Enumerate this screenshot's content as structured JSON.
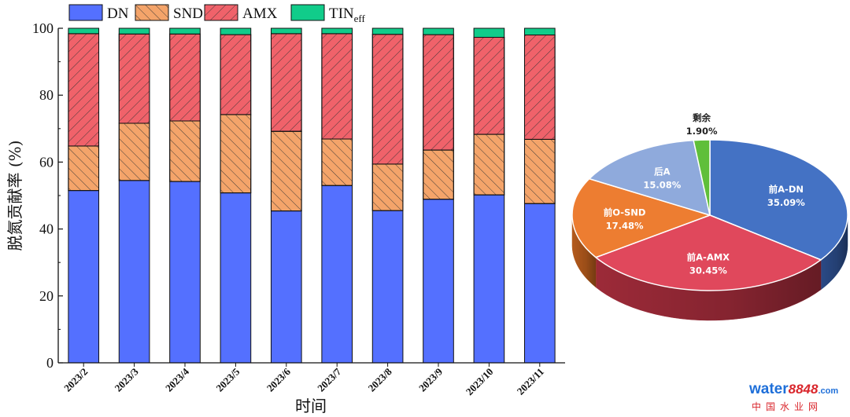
{
  "chart_data": [
    {
      "type": "bar",
      "stacked": true,
      "categories": [
        "2023/2",
        "2023/3",
        "2023/4",
        "2023/5",
        "2023/6",
        "2023/7",
        "2023/8",
        "2023/9",
        "2023/10",
        "2023/11"
      ],
      "series": [
        {
          "name": "DN",
          "color": "#5470ff",
          "pattern": "none",
          "values": [
            51.5,
            54.5,
            54.2,
            50.8,
            45.4,
            53.0,
            45.5,
            48.9,
            50.2,
            47.6
          ]
        },
        {
          "name": "SND",
          "color": "#f4a46a",
          "pattern": "back-hatch",
          "values": [
            13.3,
            17.1,
            18.1,
            23.4,
            23.8,
            13.9,
            13.9,
            14.7,
            18.1,
            19.2
          ]
        },
        {
          "name": "AMX",
          "color": "#f0626a",
          "pattern": "hatch",
          "values": [
            33.6,
            26.7,
            26.0,
            23.9,
            29.2,
            31.5,
            38.8,
            34.5,
            29.0,
            31.2
          ]
        },
        {
          "name": "TIN",
          "subscript": "eff",
          "color": "#11cc8a",
          "pattern": "none",
          "values": [
            1.6,
            1.7,
            1.7,
            1.9,
            1.6,
            1.6,
            1.8,
            1.9,
            2.7,
            2.0
          ]
        }
      ],
      "xlabel": "时间",
      "ylabel": "脱氮贡献率 (%)",
      "ylim": [
        0,
        100
      ],
      "yticks": [
        0,
        20,
        40,
        60,
        80,
        100
      ],
      "legend": "top"
    },
    {
      "type": "pie",
      "style": "3d",
      "slices": [
        {
          "label": "前A-DN",
          "value": 35.09,
          "text": "35.09%",
          "color": "#4472c4",
          "side": "#2a4a86"
        },
        {
          "label": "前A-AMX",
          "value": 30.45,
          "text": "30.45%",
          "color": "#e0485c",
          "side": "#9c2a38"
        },
        {
          "label": "前O-SND",
          "value": 17.48,
          "text": "17.48%",
          "color": "#ed7d31",
          "side": "#b45a1c"
        },
        {
          "label": "后A",
          "value": 15.08,
          "text": "15.08%",
          "color": "#8faadc",
          "side": "#6b86b8"
        },
        {
          "label": "剩余",
          "value": 1.9,
          "text": "1.90%",
          "color": "#5fbf3a",
          "side": "#3f8a22"
        }
      ]
    }
  ],
  "watermark": {
    "brand": "water",
    "number": "8848",
    "suffix": ".com",
    "sub": "中国水业网"
  }
}
